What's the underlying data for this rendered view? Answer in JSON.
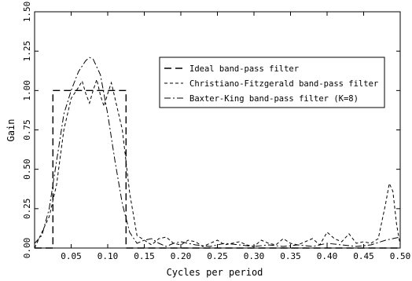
{
  "chart_data": {
    "type": "line",
    "title": "",
    "xlabel": "Cycles per period",
    "ylabel": "Gain",
    "xlim": [
      0.0,
      0.5
    ],
    "ylim": [
      0.0,
      1.5
    ],
    "xticks": [
      "0.05",
      "0.10",
      "0.15",
      "0.20",
      "0.25",
      "0.30",
      "0.35",
      "0.40",
      "0.45",
      "0.50"
    ],
    "xtick_values": [
      0.05,
      0.1,
      0.15,
      0.2,
      0.25,
      0.3,
      0.35,
      0.4,
      0.45,
      0.5
    ],
    "yticks": [
      "0.00",
      "0.25",
      "0.50",
      "0.75",
      "1.00",
      "1.25",
      "1.50"
    ],
    "ytick_values": [
      0.0,
      0.25,
      0.5,
      0.75,
      1.0,
      1.25,
      1.5
    ],
    "grid": false,
    "legend_position": "upper-right",
    "series": [
      {
        "name": "Ideal band-pass filter",
        "dash": "long-dash",
        "color": "#000000",
        "x": [
          0.0,
          0.025,
          0.025,
          0.125,
          0.125,
          0.5
        ],
        "y": [
          0.0,
          0.0,
          1.0,
          1.0,
          0.0,
          0.0
        ]
      },
      {
        "name": "Christiano-Fitzgerald band-pass filter",
        "dash": "short-dash",
        "color": "#000000",
        "x": [
          0.0,
          0.01,
          0.02,
          0.03,
          0.04,
          0.05,
          0.06,
          0.065,
          0.07,
          0.075,
          0.08,
          0.085,
          0.09,
          0.095,
          0.1,
          0.105,
          0.11,
          0.12,
          0.13,
          0.14,
          0.15,
          0.16,
          0.17,
          0.18,
          0.19,
          0.2,
          0.21,
          0.22,
          0.23,
          0.24,
          0.25,
          0.26,
          0.27,
          0.28,
          0.29,
          0.3,
          0.31,
          0.32,
          0.33,
          0.34,
          0.35,
          0.36,
          0.37,
          0.38,
          0.39,
          0.4,
          0.41,
          0.42,
          0.43,
          0.44,
          0.45,
          0.46,
          0.47,
          0.48,
          0.485,
          0.49,
          0.495,
          0.5
        ],
        "y": [
          0.0,
          0.1,
          0.2,
          0.4,
          0.75,
          0.95,
          1.02,
          1.06,
          0.98,
          0.92,
          1.0,
          1.07,
          0.97,
          0.9,
          0.98,
          1.05,
          0.95,
          0.75,
          0.35,
          0.08,
          0.05,
          0.02,
          0.06,
          0.07,
          0.03,
          0.02,
          0.05,
          0.04,
          0.01,
          0.03,
          0.05,
          0.02,
          0.03,
          0.04,
          0.02,
          0.01,
          0.05,
          0.03,
          0.02,
          0.06,
          0.03,
          0.02,
          0.04,
          0.06,
          0.02,
          0.1,
          0.06,
          0.04,
          0.09,
          0.03,
          0.04,
          0.03,
          0.06,
          0.28,
          0.41,
          0.36,
          0.15,
          0.02
        ]
      },
      {
        "name": "Baxter-King band-pass filter (K=8)",
        "dash": "dash-dot",
        "color": "#000000",
        "x": [
          0.0,
          0.01,
          0.02,
          0.03,
          0.04,
          0.05,
          0.06,
          0.07,
          0.075,
          0.08,
          0.09,
          0.1,
          0.11,
          0.12,
          0.13,
          0.14,
          0.15,
          0.16,
          0.17,
          0.18,
          0.19,
          0.2,
          0.22,
          0.24,
          0.26,
          0.28,
          0.3,
          0.32,
          0.34,
          0.36,
          0.38,
          0.4,
          0.42,
          0.44,
          0.46,
          0.48,
          0.5
        ],
        "y": [
          0.03,
          0.08,
          0.25,
          0.55,
          0.85,
          1.0,
          1.12,
          1.19,
          1.21,
          1.2,
          1.1,
          0.85,
          0.55,
          0.28,
          0.1,
          0.03,
          0.05,
          0.06,
          0.03,
          0.01,
          0.03,
          0.04,
          0.02,
          0.01,
          0.03,
          0.02,
          0.01,
          0.02,
          0.01,
          0.02,
          0.01,
          0.03,
          0.02,
          0.01,
          0.02,
          0.05,
          0.07
        ]
      }
    ]
  }
}
